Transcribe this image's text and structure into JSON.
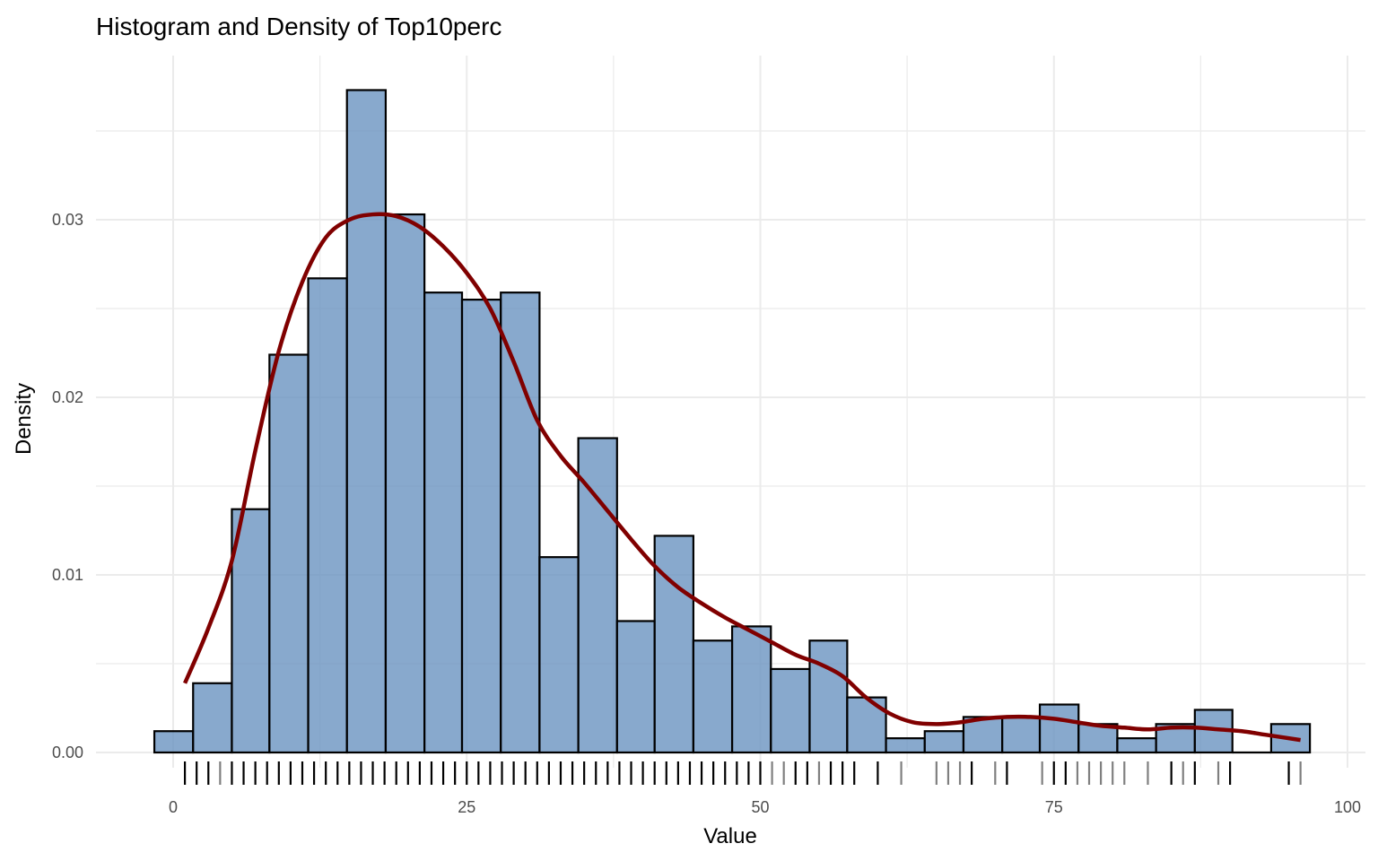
{
  "chart_data": {
    "type": "bar",
    "title": "Histogram and Density of Top10perc",
    "xlabel": "Value",
    "ylabel": "Density",
    "xlim": [
      -1.8,
      99.8
    ],
    "ylim": [
      0,
      0.0375
    ],
    "x_ticks": [
      {
        "value": 0,
        "label": "0"
      },
      {
        "value": 25,
        "label": "25"
      },
      {
        "value": 50,
        "label": "50"
      },
      {
        "value": 75,
        "label": "75"
      },
      {
        "value": 100,
        "label": "100"
      }
    ],
    "y_ticks": [
      {
        "value": 0,
        "label": "0.00"
      },
      {
        "value": 0.01,
        "label": "0.01"
      },
      {
        "value": 0.02,
        "label": "0.02"
      },
      {
        "value": 0.03,
        "label": "0.03"
      }
    ],
    "grid": true,
    "histogram": {
      "bin_width": 3.27,
      "bins": [
        {
          "x0": -1.6,
          "x1": 1.7,
          "density": 0.0012
        },
        {
          "x0": 1.7,
          "x1": 5.0,
          "density": 0.0039
        },
        {
          "x0": 5.0,
          "x1": 8.2,
          "density": 0.0137
        },
        {
          "x0": 8.2,
          "x1": 11.5,
          "density": 0.0224
        },
        {
          "x0": 11.5,
          "x1": 14.8,
          "density": 0.0267
        },
        {
          "x0": 14.8,
          "x1": 18.1,
          "density": 0.0373
        },
        {
          "x0": 18.1,
          "x1": 21.4,
          "density": 0.0303
        },
        {
          "x0": 21.4,
          "x1": 24.6,
          "density": 0.0259
        },
        {
          "x0": 24.6,
          "x1": 27.9,
          "density": 0.0255
        },
        {
          "x0": 27.9,
          "x1": 31.2,
          "density": 0.0259
        },
        {
          "x0": 31.2,
          "x1": 34.5,
          "density": 0.011
        },
        {
          "x0": 34.5,
          "x1": 37.8,
          "density": 0.0177
        },
        {
          "x0": 37.8,
          "x1": 41.0,
          "density": 0.0074
        },
        {
          "x0": 41.0,
          "x1": 44.3,
          "density": 0.0122
        },
        {
          "x0": 44.3,
          "x1": 47.6,
          "density": 0.0063
        },
        {
          "x0": 47.6,
          "x1": 50.9,
          "density": 0.0071
        },
        {
          "x0": 50.9,
          "x1": 54.2,
          "density": 0.0047
        },
        {
          "x0": 54.2,
          "x1": 57.4,
          "density": 0.0063
        },
        {
          "x0": 57.4,
          "x1": 60.7,
          "density": 0.0031
        },
        {
          "x0": 60.7,
          "x1": 64.0,
          "density": 0.0008
        },
        {
          "x0": 64.0,
          "x1": 67.3,
          "density": 0.0012
        },
        {
          "x0": 67.3,
          "x1": 70.6,
          "density": 0.002
        },
        {
          "x0": 70.6,
          "x1": 73.8,
          "density": 0.002
        },
        {
          "x0": 73.8,
          "x1": 77.1,
          "density": 0.0027
        },
        {
          "x0": 77.1,
          "x1": 80.4,
          "density": 0.0016
        },
        {
          "x0": 80.4,
          "x1": 83.7,
          "density": 0.0008
        },
        {
          "x0": 83.7,
          "x1": 87.0,
          "density": 0.0016
        },
        {
          "x0": 87.0,
          "x1": 90.2,
          "density": 0.0024
        },
        {
          "x0": 90.2,
          "x1": 93.5,
          "density": 0.0
        },
        {
          "x0": 93.5,
          "x1": 96.8,
          "density": 0.0016
        }
      ]
    },
    "density_curve": {
      "color": "#800000",
      "x": [
        1,
        3,
        5,
        7,
        9,
        11,
        13,
        15,
        17,
        19,
        21,
        23,
        25,
        27,
        29,
        31,
        33,
        35,
        37,
        39,
        41,
        43,
        45,
        47,
        49,
        51,
        53,
        55,
        57,
        59,
        61,
        63,
        65,
        67,
        69,
        71,
        73,
        75,
        77,
        79,
        81,
        83,
        85,
        87,
        89,
        91,
        93,
        96
      ],
      "y": [
        0.0039,
        0.007,
        0.0108,
        0.017,
        0.0226,
        0.0265,
        0.029,
        0.03,
        0.0303,
        0.0302,
        0.0296,
        0.0285,
        0.027,
        0.025,
        0.022,
        0.0187,
        0.0167,
        0.0152,
        0.0136,
        0.012,
        0.0105,
        0.0093,
        0.0084,
        0.0076,
        0.0069,
        0.0062,
        0.0055,
        0.005,
        0.0043,
        0.0031,
        0.0022,
        0.0017,
        0.0016,
        0.0017,
        0.0019,
        0.002,
        0.002,
        0.0019,
        0.0017,
        0.0015,
        0.0014,
        0.0013,
        0.0014,
        0.0014,
        0.0013,
        0.0012,
        0.001,
        0.0007
      ]
    },
    "rug": {
      "values": [
        1,
        2,
        3,
        4,
        5,
        6,
        7,
        8,
        9,
        10,
        11,
        12,
        13,
        14,
        15,
        16,
        17,
        18,
        19,
        20,
        21,
        22,
        23,
        24,
        25,
        26,
        27,
        28,
        29,
        30,
        31,
        32,
        33,
        34,
        35,
        36,
        37,
        38,
        39,
        40,
        41,
        42,
        43,
        44,
        45,
        46,
        47,
        48,
        49,
        50,
        51,
        52,
        53,
        54,
        55,
        56,
        57,
        58,
        60,
        62,
        65,
        66,
        67,
        68,
        70,
        71,
        74,
        75,
        76,
        77,
        78,
        79,
        80,
        81,
        83,
        85,
        86,
        87,
        89,
        90,
        95,
        96
      ],
      "opacity": [
        1,
        1,
        1,
        0.5,
        1,
        1,
        1,
        1,
        1,
        1,
        1,
        1,
        1,
        1,
        1,
        1,
        1,
        1,
        1,
        1,
        1,
        1,
        1,
        1,
        1,
        1,
        1,
        1,
        1,
        1,
        1,
        1,
        1,
        1,
        1,
        1,
        1,
        1,
        1,
        1,
        1,
        1,
        1,
        1,
        1,
        1,
        1,
        1,
        1,
        1,
        0.5,
        0.5,
        1,
        1,
        0.5,
        1,
        1,
        1,
        1,
        0.5,
        0.5,
        0.5,
        0.5,
        1,
        0.5,
        1,
        0.5,
        1,
        1,
        0.5,
        0.5,
        0.5,
        0.5,
        0.5,
        0.5,
        1,
        0.5,
        1,
        0.5,
        1,
        1,
        0.5
      ]
    }
  }
}
